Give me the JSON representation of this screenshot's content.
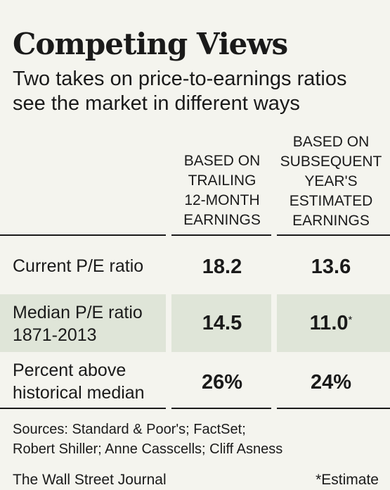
{
  "chart_data": {
    "type": "table",
    "title": "Competing Views",
    "subtitle": "Two takes on price-to-earnings ratios see the market in different ways",
    "columns": [
      {
        "header_lines": [
          "BASED ON",
          "TRAILING",
          "12-MONTH",
          "EARNINGS"
        ]
      },
      {
        "header_lines": [
          "BASED ON",
          "SUBSEQUENT",
          "YEAR'S",
          "ESTIMATED",
          "EARNINGS"
        ]
      }
    ],
    "rows": [
      {
        "label_lines": [
          "Current P/E ratio"
        ],
        "values": [
          "18.2",
          "13.6"
        ],
        "markers": [
          "",
          ""
        ],
        "shaded": false
      },
      {
        "label_lines": [
          "Median P/E ratio",
          "1871-2013"
        ],
        "values": [
          "14.5",
          "11.0"
        ],
        "markers": [
          "",
          "*"
        ],
        "shaded": true
      },
      {
        "label_lines": [
          "Percent above",
          "historical median"
        ],
        "values": [
          "26%",
          "24%"
        ],
        "markers": [
          "",
          ""
        ],
        "shaded": false
      }
    ],
    "sources_lines": [
      "Sources: Standard & Poor's; FactSet;",
      "Robert Shiller; Anne Casscells; Cliff Asness"
    ],
    "credit": "The Wall Street Journal",
    "footnote": "*Estimate",
    "colors": {
      "shade": "#dfe5d8",
      "background": "#f4f4ee",
      "text": "#1a1a1a"
    }
  }
}
